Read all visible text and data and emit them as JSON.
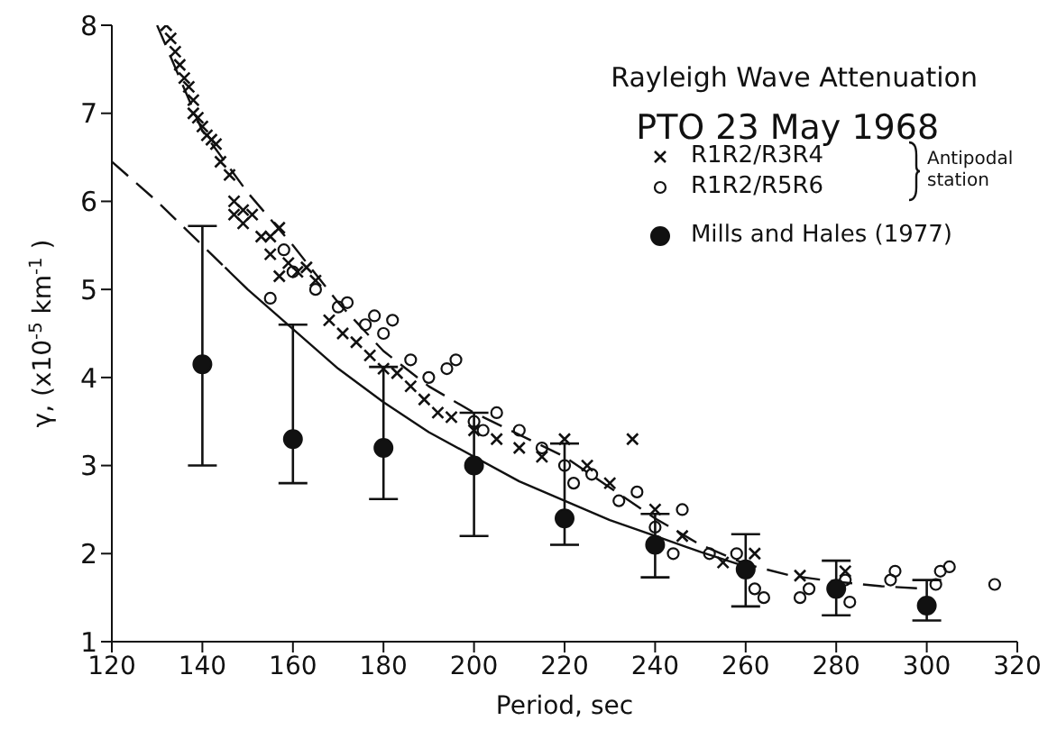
{
  "chart_data": {
    "type": "scatter",
    "title": "Rayleigh Wave Attenuation",
    "subtitle": "PTO 23 May 1968",
    "xlabel": "Period, sec",
    "ylabel": "γ, (x10$^{-5}$ km$^{-1}$)",
    "annotations": [
      "Antipodal station"
    ],
    "xlim": [
      120,
      320
    ],
    "xticks": [
      120,
      140,
      160,
      180,
      200,
      220,
      240,
      260,
      280,
      300,
      320
    ],
    "ylim": [
      1,
      8
    ],
    "yticks": [
      1,
      2,
      3,
      4,
      5,
      6,
      7,
      8
    ],
    "legend": "top right",
    "series": [
      {
        "name": "R1R2/R3R4",
        "type": "scatter",
        "marker": "cross",
        "color": "#111111",
        "x": [
          132,
          133,
          134,
          135,
          136,
          137,
          138,
          138,
          139,
          140,
          141,
          142,
          143,
          144,
          146,
          147,
          147,
          149,
          149,
          151,
          153,
          155,
          155,
          157,
          157,
          159,
          161,
          163,
          165,
          168,
          171,
          174,
          177,
          180,
          183,
          186,
          189,
          192,
          195,
          200,
          205,
          210,
          215,
          220,
          225,
          230,
          235,
          240,
          246,
          255,
          262,
          272,
          282
        ],
        "values": [
          8.0,
          7.85,
          7.7,
          7.55,
          7.4,
          7.3,
          7.15,
          7.0,
          6.95,
          6.85,
          6.75,
          6.7,
          6.65,
          6.45,
          6.3,
          6.0,
          5.85,
          5.9,
          5.75,
          5.85,
          5.6,
          5.6,
          5.4,
          5.7,
          5.15,
          5.3,
          5.2,
          5.25,
          5.1,
          4.65,
          4.5,
          4.4,
          4.25,
          4.1,
          4.05,
          3.9,
          3.75,
          3.6,
          3.55,
          3.4,
          3.3,
          3.2,
          3.1,
          3.3,
          3.0,
          2.8,
          3.3,
          2.5,
          2.2,
          1.9,
          2.0,
          1.75,
          1.8
        ]
      },
      {
        "name": "R1R2/R5R6",
        "type": "scatter",
        "marker": "circle",
        "color": "#111111",
        "x": [
          155,
          158,
          160,
          165,
          170,
          172,
          176,
          178,
          180,
          182,
          186,
          190,
          194,
          196,
          200,
          202,
          205,
          210,
          215,
          220,
          222,
          226,
          232,
          236,
          240,
          244,
          246,
          252,
          258,
          262,
          264,
          272,
          274,
          282,
          283,
          292,
          293,
          302,
          303,
          305,
          315
        ],
        "values": [
          4.9,
          5.45,
          5.2,
          5.0,
          4.8,
          4.85,
          4.6,
          4.7,
          4.5,
          4.65,
          4.2,
          4.0,
          4.1,
          4.2,
          3.5,
          3.4,
          3.6,
          3.4,
          3.2,
          3.0,
          2.8,
          2.9,
          2.6,
          2.7,
          2.3,
          2.0,
          2.5,
          2.0,
          2.0,
          1.6,
          1.5,
          1.5,
          1.6,
          1.7,
          1.45,
          1.7,
          1.8,
          1.65,
          1.8,
          1.85,
          1.65
        ]
      },
      {
        "name": "Mills and Hales (1977)",
        "marker": "filled_circle",
        "color": "#111111",
        "x": [
          140,
          160,
          180,
          200,
          220,
          240,
          260,
          280,
          300
        ],
        "values": [
          4.15,
          3.3,
          3.2,
          3.0,
          2.4,
          2.1,
          1.82,
          1.6,
          1.41
        ],
        "errors": [
          [
            3.0,
            5.72
          ],
          [
            2.8,
            4.6
          ],
          [
            2.62,
            4.12
          ],
          [
            2.2,
            3.6
          ],
          [
            2.1,
            3.25
          ],
          [
            1.73,
            2.45
          ],
          [
            1.4,
            2.22
          ],
          [
            1.3,
            1.92
          ],
          [
            1.24,
            1.7
          ]
        ]
      },
      {
        "type": "line",
        "line_style": "dashed",
        "color": "#111111",
        "x": [
          130,
          140,
          150,
          160,
          170,
          180,
          190,
          200,
          210,
          220,
          230,
          240,
          250,
          260,
          270,
          280,
          290,
          300
        ],
        "values": [
          8.0,
          6.8,
          6.1,
          5.5,
          4.85,
          4.3,
          3.9,
          3.6,
          3.35,
          3.1,
          2.75,
          2.4,
          2.1,
          1.88,
          1.75,
          1.68,
          1.63,
          1.6
        ]
      },
      {
        "type": "line",
        "line_style": "dashed",
        "color": "#111111",
        "x": [
          120,
          130,
          145
        ],
        "values": [
          6.45,
          6.0,
          5.25
        ]
      },
      {
        "type": "line",
        "line_style": "solid",
        "color": "#111111",
        "x": [
          145,
          150,
          160,
          170,
          180,
          190,
          200,
          210,
          220,
          230,
          240,
          250,
          262
        ],
        "values": [
          5.25,
          5.0,
          4.55,
          4.1,
          3.72,
          3.38,
          3.1,
          2.82,
          2.6,
          2.38,
          2.2,
          2.02,
          1.82
        ]
      }
    ]
  }
}
